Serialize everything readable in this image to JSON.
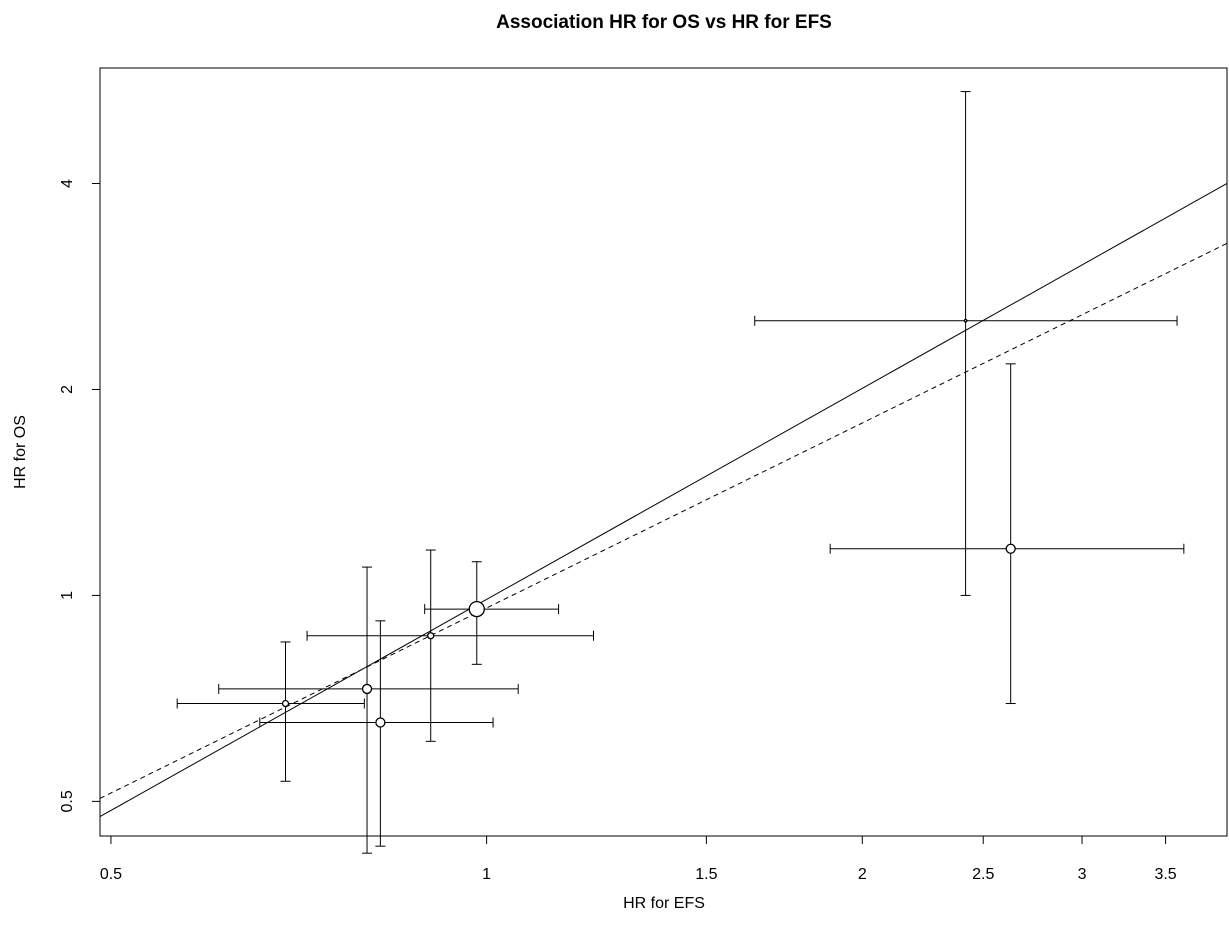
{
  "chart_data": {
    "type": "scatter",
    "title": "Association HR for OS vs HR for EFS",
    "xlabel": "HR for EFS",
    "ylabel": "HR for OS",
    "x_scale": "log",
    "y_scale": "log",
    "xlim": [
      0.49,
      3.92
    ],
    "ylim": [
      0.445,
      5.9
    ],
    "x_ticks": [
      0.5,
      1,
      1.5,
      2,
      2.5,
      3,
      3.5
    ],
    "x_tick_labels": [
      "0.5",
      "1",
      "1.5",
      "2",
      "2.5",
      "3",
      "3.5"
    ],
    "y_ticks": [
      0.5,
      1,
      2,
      4
    ],
    "y_tick_labels": [
      "0.5",
      "1",
      "2",
      "4"
    ],
    "grid": false,
    "points": [
      {
        "x": 0.69,
        "y": 0.695,
        "x_lo": 0.565,
        "x_hi": 0.798,
        "y_lo": 0.535,
        "y_hi": 0.855,
        "size": "small"
      },
      {
        "x": 0.802,
        "y": 0.73,
        "x_lo": 0.61,
        "x_hi": 1.06,
        "y_lo": 0.42,
        "y_hi": 1.1,
        "size": "medium"
      },
      {
        "x": 0.822,
        "y": 0.652,
        "x_lo": 0.658,
        "x_hi": 1.012,
        "y_lo": 0.43,
        "y_hi": 0.918,
        "size": "medium"
      },
      {
        "x": 0.902,
        "y": 0.873,
        "x_lo": 0.718,
        "x_hi": 1.218,
        "y_lo": 0.612,
        "y_hi": 1.165,
        "size": "small"
      },
      {
        "x": 0.982,
        "y": 0.955,
        "x_lo": 0.892,
        "x_hi": 1.142,
        "y_lo": 0.793,
        "y_hi": 1.12,
        "size": "large"
      },
      {
        "x": 2.42,
        "y": 2.52,
        "x_lo": 1.64,
        "x_hi": 3.575,
        "y_lo": 1.0,
        "y_hi": 5.45,
        "size": "tiny"
      },
      {
        "x": 2.63,
        "y": 1.17,
        "x_lo": 1.885,
        "x_hi": 3.62,
        "y_lo": 0.695,
        "y_hi": 2.18,
        "size": "medium"
      }
    ],
    "lines": [
      {
        "style": "solid",
        "points": [
          [
            0.49,
            0.475
          ],
          [
            3.92,
            4.0
          ]
        ]
      },
      {
        "style": "dashed",
        "points": [
          [
            0.49,
            0.505
          ],
          [
            3.92,
            3.27
          ]
        ]
      }
    ]
  }
}
